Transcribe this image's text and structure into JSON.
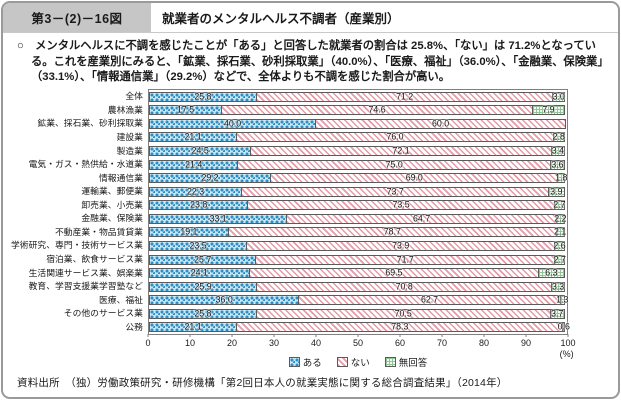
{
  "header": {
    "fig_no": "第3－(2)－16図",
    "title": "就業者のメンタルヘルス不調者（産業別）"
  },
  "body_text": "○　メンタルヘルスに不調を感じたことが「ある」と回答した就業者の割合は 25.8%、「ない」は 71.2%となっている。これを産業別にみると、「鉱業、採石業、砂利採取業」（40.0%）、「医療、福祉」（36.0%）、「金融業、保険業」（33.1%）、「情報通信業」（29.2%）などで、全体よりも不調を感じた割合が高い。",
  "chart_data": {
    "type": "bar",
    "orientation": "horizontal",
    "stacked": true,
    "categories": [
      "全体",
      "農林漁業",
      "鉱業、採石業、砂利採取業",
      "建設業",
      "製造業",
      "電気・ガス・熱供給・水道業",
      "情報通信業",
      "運輸業、郵便業",
      "卸売業、小売業",
      "金融業、保険業",
      "不動産業・物品賃貸業",
      "学術研究、専門・技術サービス業",
      "宿泊業、飲食サービス業",
      "生活関連サービス業、娯楽業",
      "教育、学習支援業学習塾など",
      "医療、福祉",
      "その他のサービス業",
      "公務"
    ],
    "series": [
      {
        "name": "ある",
        "color": "#2f8fc4",
        "values": [
          25.8,
          17.5,
          40.0,
          21.1,
          24.5,
          21.4,
          29.2,
          22.3,
          23.8,
          33.1,
          19.1,
          23.5,
          25.7,
          24.1,
          25.9,
          36.0,
          25.8,
          21.1
        ]
      },
      {
        "name": "ない",
        "color": "#e69aa6",
        "values": [
          71.2,
          74.6,
          60.0,
          76.0,
          72.1,
          75.0,
          69.0,
          73.7,
          73.5,
          64.7,
          78.7,
          73.9,
          71.7,
          69.5,
          70.8,
          62.7,
          70.5,
          78.3
        ]
      },
      {
        "name": "無回答",
        "color": "#93c493",
        "values": [
          3.0,
          7.9,
          0.0,
          2.8,
          3.4,
          3.6,
          1.8,
          3.9,
          2.7,
          2.2,
          2.1,
          2.6,
          2.7,
          6.3,
          3.3,
          1.3,
          3.7,
          0.6
        ]
      }
    ],
    "xlim": [
      0,
      100
    ],
    "x_ticks": [
      0,
      10,
      20,
      30,
      40,
      50,
      60,
      70,
      80,
      90,
      100
    ],
    "x_unit": "(%)",
    "legend_position": "bottom",
    "grid": false
  },
  "source": "資料出所　（独）労働政策研究・研修機構「第2回日本人の就業実態に関する総合調査結果」（2014年）"
}
